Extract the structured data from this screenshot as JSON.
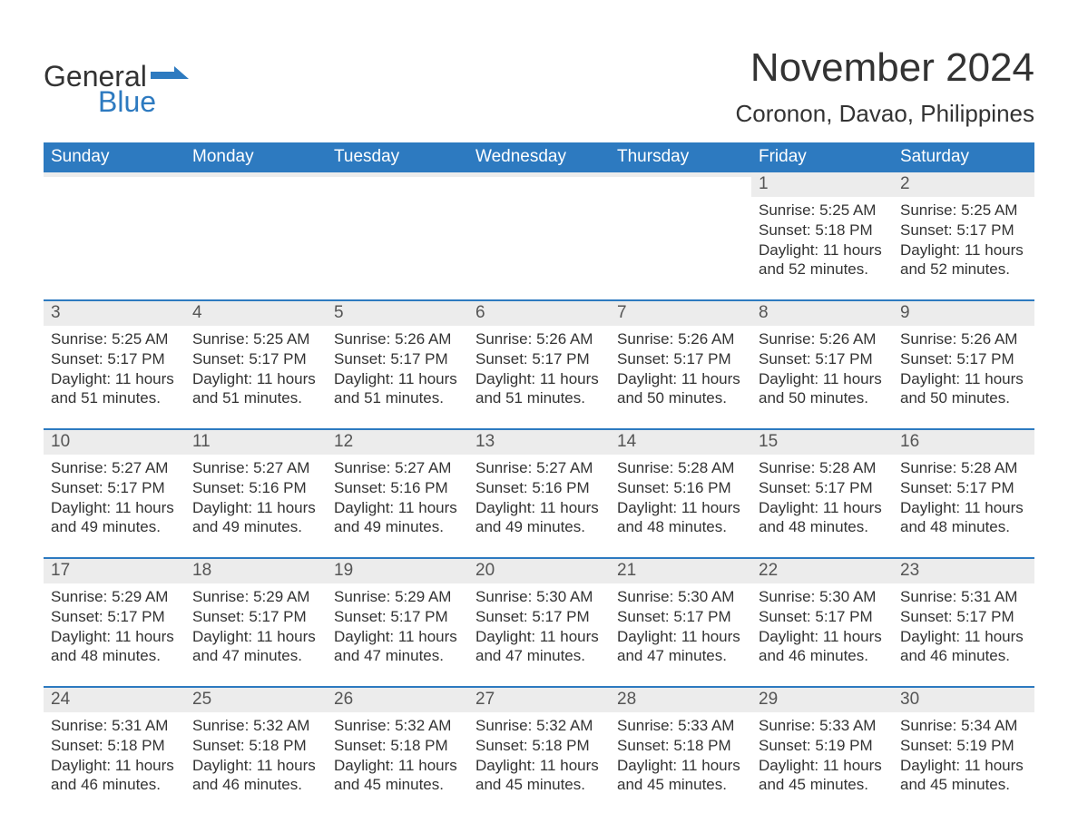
{
  "brand": {
    "word1": "General",
    "word2": "Blue"
  },
  "title": "November 2024",
  "location": "Coronon, Davao, Philippines",
  "colors": {
    "header_bg": "#2d7ac0",
    "header_fg": "#ffffff",
    "daynum_bg": "#ececec",
    "accent_border": "#2d7ac0",
    "text": "#333333"
  },
  "dayNames": [
    "Sunday",
    "Monday",
    "Tuesday",
    "Wednesday",
    "Thursday",
    "Friday",
    "Saturday"
  ],
  "weeks": [
    [
      null,
      null,
      null,
      null,
      null,
      {
        "n": "1",
        "sunrise": "5:25 AM",
        "sunset": "5:18 PM",
        "daylight": "11 hours and 52 minutes."
      },
      {
        "n": "2",
        "sunrise": "5:25 AM",
        "sunset": "5:17 PM",
        "daylight": "11 hours and 52 minutes."
      }
    ],
    [
      {
        "n": "3",
        "sunrise": "5:25 AM",
        "sunset": "5:17 PM",
        "daylight": "11 hours and 51 minutes."
      },
      {
        "n": "4",
        "sunrise": "5:25 AM",
        "sunset": "5:17 PM",
        "daylight": "11 hours and 51 minutes."
      },
      {
        "n": "5",
        "sunrise": "5:26 AM",
        "sunset": "5:17 PM",
        "daylight": "11 hours and 51 minutes."
      },
      {
        "n": "6",
        "sunrise": "5:26 AM",
        "sunset": "5:17 PM",
        "daylight": "11 hours and 51 minutes."
      },
      {
        "n": "7",
        "sunrise": "5:26 AM",
        "sunset": "5:17 PM",
        "daylight": "11 hours and 50 minutes."
      },
      {
        "n": "8",
        "sunrise": "5:26 AM",
        "sunset": "5:17 PM",
        "daylight": "11 hours and 50 minutes."
      },
      {
        "n": "9",
        "sunrise": "5:26 AM",
        "sunset": "5:17 PM",
        "daylight": "11 hours and 50 minutes."
      }
    ],
    [
      {
        "n": "10",
        "sunrise": "5:27 AM",
        "sunset": "5:17 PM",
        "daylight": "11 hours and 49 minutes."
      },
      {
        "n": "11",
        "sunrise": "5:27 AM",
        "sunset": "5:16 PM",
        "daylight": "11 hours and 49 minutes."
      },
      {
        "n": "12",
        "sunrise": "5:27 AM",
        "sunset": "5:16 PM",
        "daylight": "11 hours and 49 minutes."
      },
      {
        "n": "13",
        "sunrise": "5:27 AM",
        "sunset": "5:16 PM",
        "daylight": "11 hours and 49 minutes."
      },
      {
        "n": "14",
        "sunrise": "5:28 AM",
        "sunset": "5:16 PM",
        "daylight": "11 hours and 48 minutes."
      },
      {
        "n": "15",
        "sunrise": "5:28 AM",
        "sunset": "5:17 PM",
        "daylight": "11 hours and 48 minutes."
      },
      {
        "n": "16",
        "sunrise": "5:28 AM",
        "sunset": "5:17 PM",
        "daylight": "11 hours and 48 minutes."
      }
    ],
    [
      {
        "n": "17",
        "sunrise": "5:29 AM",
        "sunset": "5:17 PM",
        "daylight": "11 hours and 48 minutes."
      },
      {
        "n": "18",
        "sunrise": "5:29 AM",
        "sunset": "5:17 PM",
        "daylight": "11 hours and 47 minutes."
      },
      {
        "n": "19",
        "sunrise": "5:29 AM",
        "sunset": "5:17 PM",
        "daylight": "11 hours and 47 minutes."
      },
      {
        "n": "20",
        "sunrise": "5:30 AM",
        "sunset": "5:17 PM",
        "daylight": "11 hours and 47 minutes."
      },
      {
        "n": "21",
        "sunrise": "5:30 AM",
        "sunset": "5:17 PM",
        "daylight": "11 hours and 47 minutes."
      },
      {
        "n": "22",
        "sunrise": "5:30 AM",
        "sunset": "5:17 PM",
        "daylight": "11 hours and 46 minutes."
      },
      {
        "n": "23",
        "sunrise": "5:31 AM",
        "sunset": "5:17 PM",
        "daylight": "11 hours and 46 minutes."
      }
    ],
    [
      {
        "n": "24",
        "sunrise": "5:31 AM",
        "sunset": "5:18 PM",
        "daylight": "11 hours and 46 minutes."
      },
      {
        "n": "25",
        "sunrise": "5:32 AM",
        "sunset": "5:18 PM",
        "daylight": "11 hours and 46 minutes."
      },
      {
        "n": "26",
        "sunrise": "5:32 AM",
        "sunset": "5:18 PM",
        "daylight": "11 hours and 45 minutes."
      },
      {
        "n": "27",
        "sunrise": "5:32 AM",
        "sunset": "5:18 PM",
        "daylight": "11 hours and 45 minutes."
      },
      {
        "n": "28",
        "sunrise": "5:33 AM",
        "sunset": "5:18 PM",
        "daylight": "11 hours and 45 minutes."
      },
      {
        "n": "29",
        "sunrise": "5:33 AM",
        "sunset": "5:19 PM",
        "daylight": "11 hours and 45 minutes."
      },
      {
        "n": "30",
        "sunrise": "5:34 AM",
        "sunset": "5:19 PM",
        "daylight": "11 hours and 45 minutes."
      }
    ]
  ],
  "labels": {
    "sunrise": "Sunrise: ",
    "sunset": "Sunset: ",
    "daylight": "Daylight: "
  }
}
